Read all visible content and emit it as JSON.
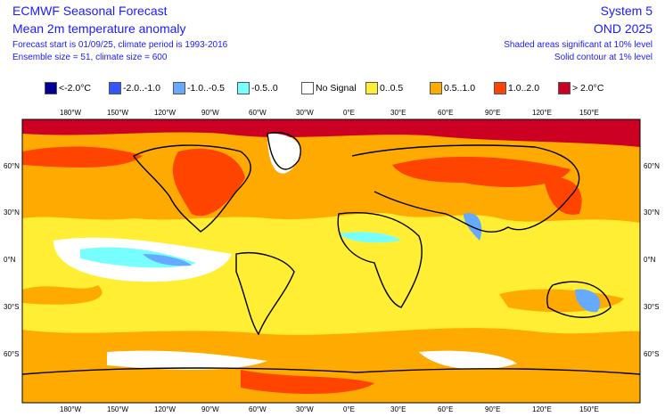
{
  "header": {
    "title": "ECMWF Seasonal Forecast",
    "subtitle": "Mean 2m temperature anomaly",
    "forecast_info": "Forecast start is 01/09/25, climate period is 1993-2016",
    "ensemble_info": "Ensemble size = 51, climate size = 600",
    "system": "System 5",
    "period": "OND 2025",
    "shading_note": "Shaded areas significant at 10% level",
    "contour_note": "Solid contour at 1% level"
  },
  "legend": [
    {
      "label": "<-2.0°C",
      "color": "#000099"
    },
    {
      "label": "-2.0..-1.0",
      "color": "#3355ff"
    },
    {
      "label": "-1.0..-0.5",
      "color": "#66aaff"
    },
    {
      "label": "-0.5..0",
      "color": "#77ffff"
    },
    {
      "label": "No Signal",
      "color": "#ffffff"
    },
    {
      "label": "0..0.5",
      "color": "#ffee33"
    },
    {
      "label": "0.5..1.0",
      "color": "#ffaa00"
    },
    {
      "label": "1.0..2.0",
      "color": "#ff4400"
    },
    {
      "label": "> 2.0°C",
      "color": "#cc0022"
    }
  ],
  "axes": {
    "lon": [
      "180°W",
      "150°W",
      "120°W",
      "90°W",
      "60°W",
      "30°W",
      "0°E",
      "30°E",
      "60°E",
      "90°E",
      "120°E",
      "150°E"
    ],
    "lat": [
      "60°N",
      "30°N",
      "0°N",
      "30°S",
      "60°S"
    ]
  }
}
